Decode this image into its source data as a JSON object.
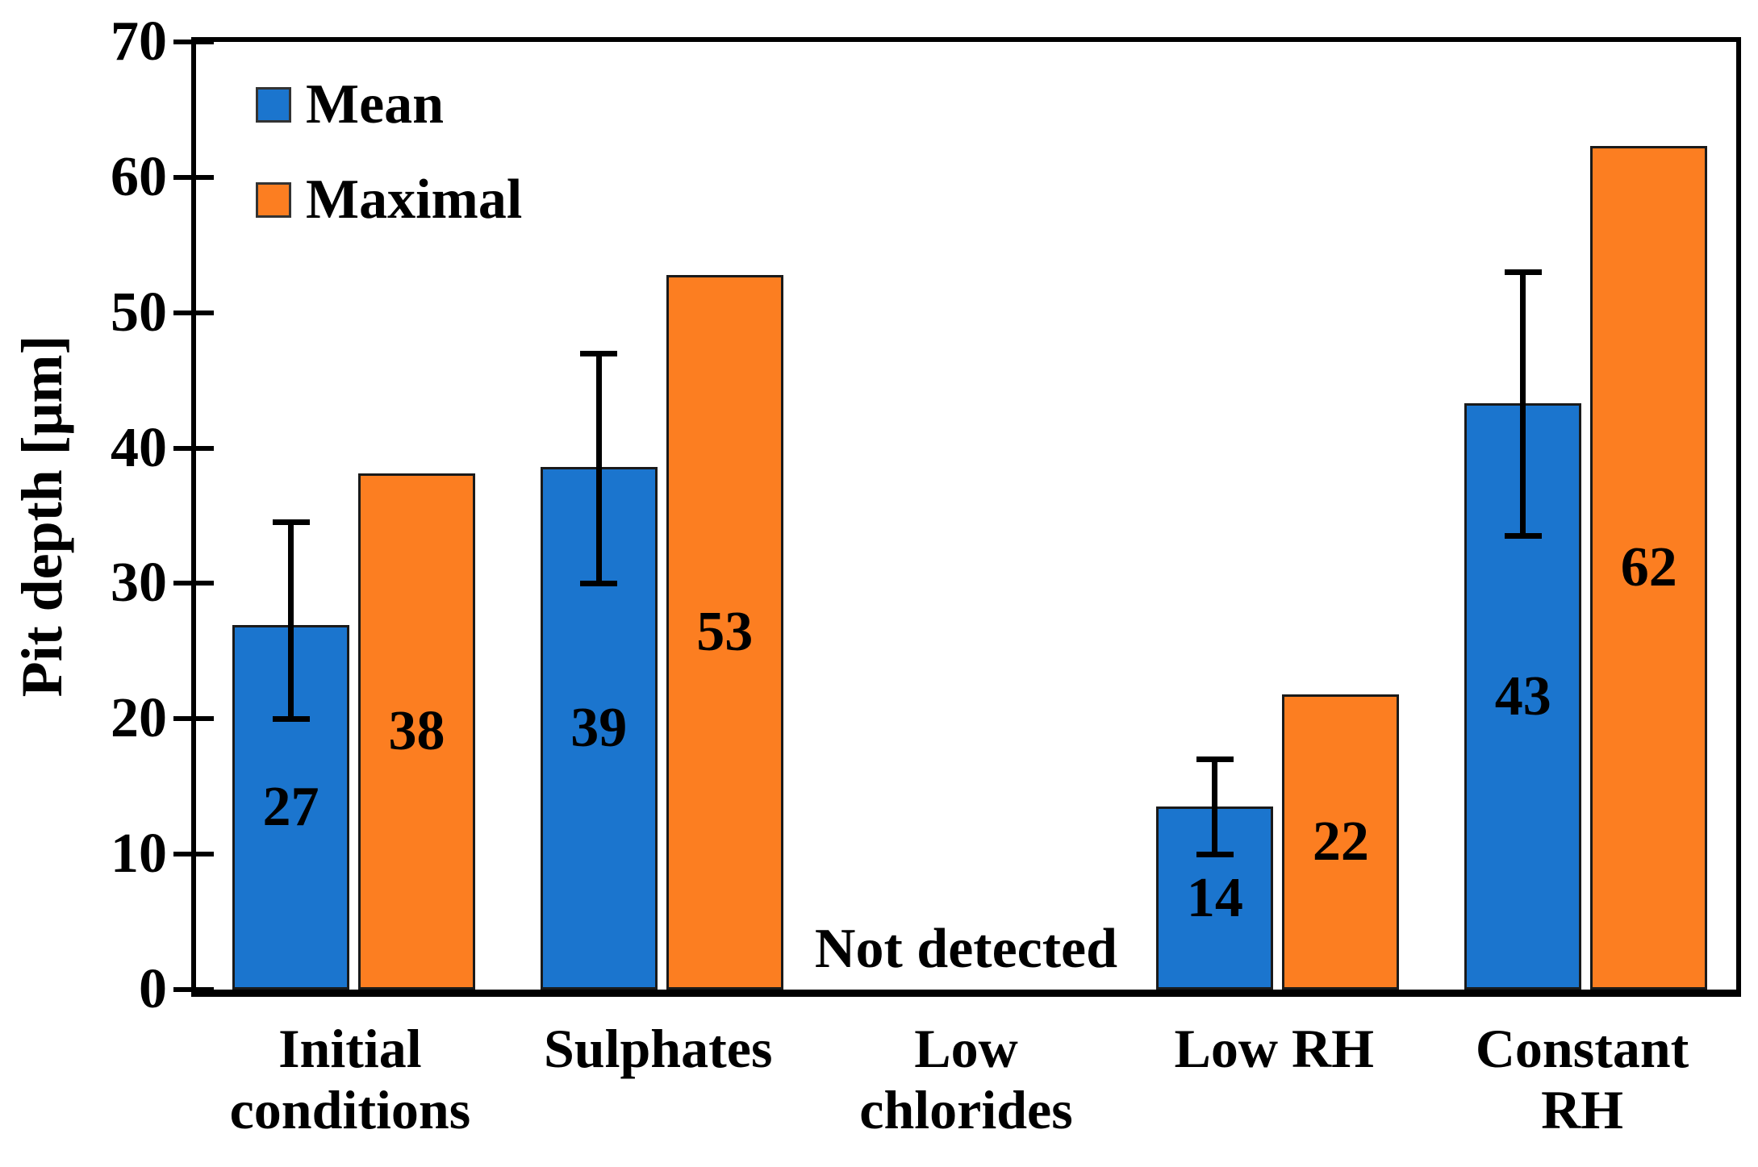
{
  "chart_data": {
    "type": "bar",
    "title": "",
    "ylabel": "Pit depth [μm]",
    "xlabel": "",
    "ylim": [
      0,
      70
    ],
    "yticks": [
      0,
      10,
      20,
      30,
      40,
      50,
      60,
      70
    ],
    "grid": false,
    "legend_position": "top-left inside plot area",
    "frame": "full box around plot",
    "bar_outline_color": "#1a1a1a",
    "error_bar_color": "#000000",
    "categories": [
      "Initial\nconditions",
      "Sulphates",
      "Low\nchlorides",
      "Low RH",
      "Constant\nRH"
    ],
    "series": [
      {
        "name": "Mean",
        "color": "#1B75CE",
        "values": [
          26.9,
          38.6,
          null,
          13.5,
          43.3
        ],
        "labels": [
          "27",
          "39",
          null,
          "14",
          "43"
        ],
        "error_low": [
          20,
          30,
          null,
          10,
          33.5
        ],
        "error_high": [
          34.5,
          47,
          null,
          17,
          53
        ]
      },
      {
        "name": "Maximal",
        "color": "#FC7E21",
        "values": [
          38.1,
          52.8,
          null,
          21.8,
          62.3
        ],
        "labels": [
          "38",
          "53",
          null,
          "22",
          "62"
        ]
      }
    ],
    "annotations": [
      {
        "text": "Not detected",
        "category_index": 2
      }
    ]
  }
}
